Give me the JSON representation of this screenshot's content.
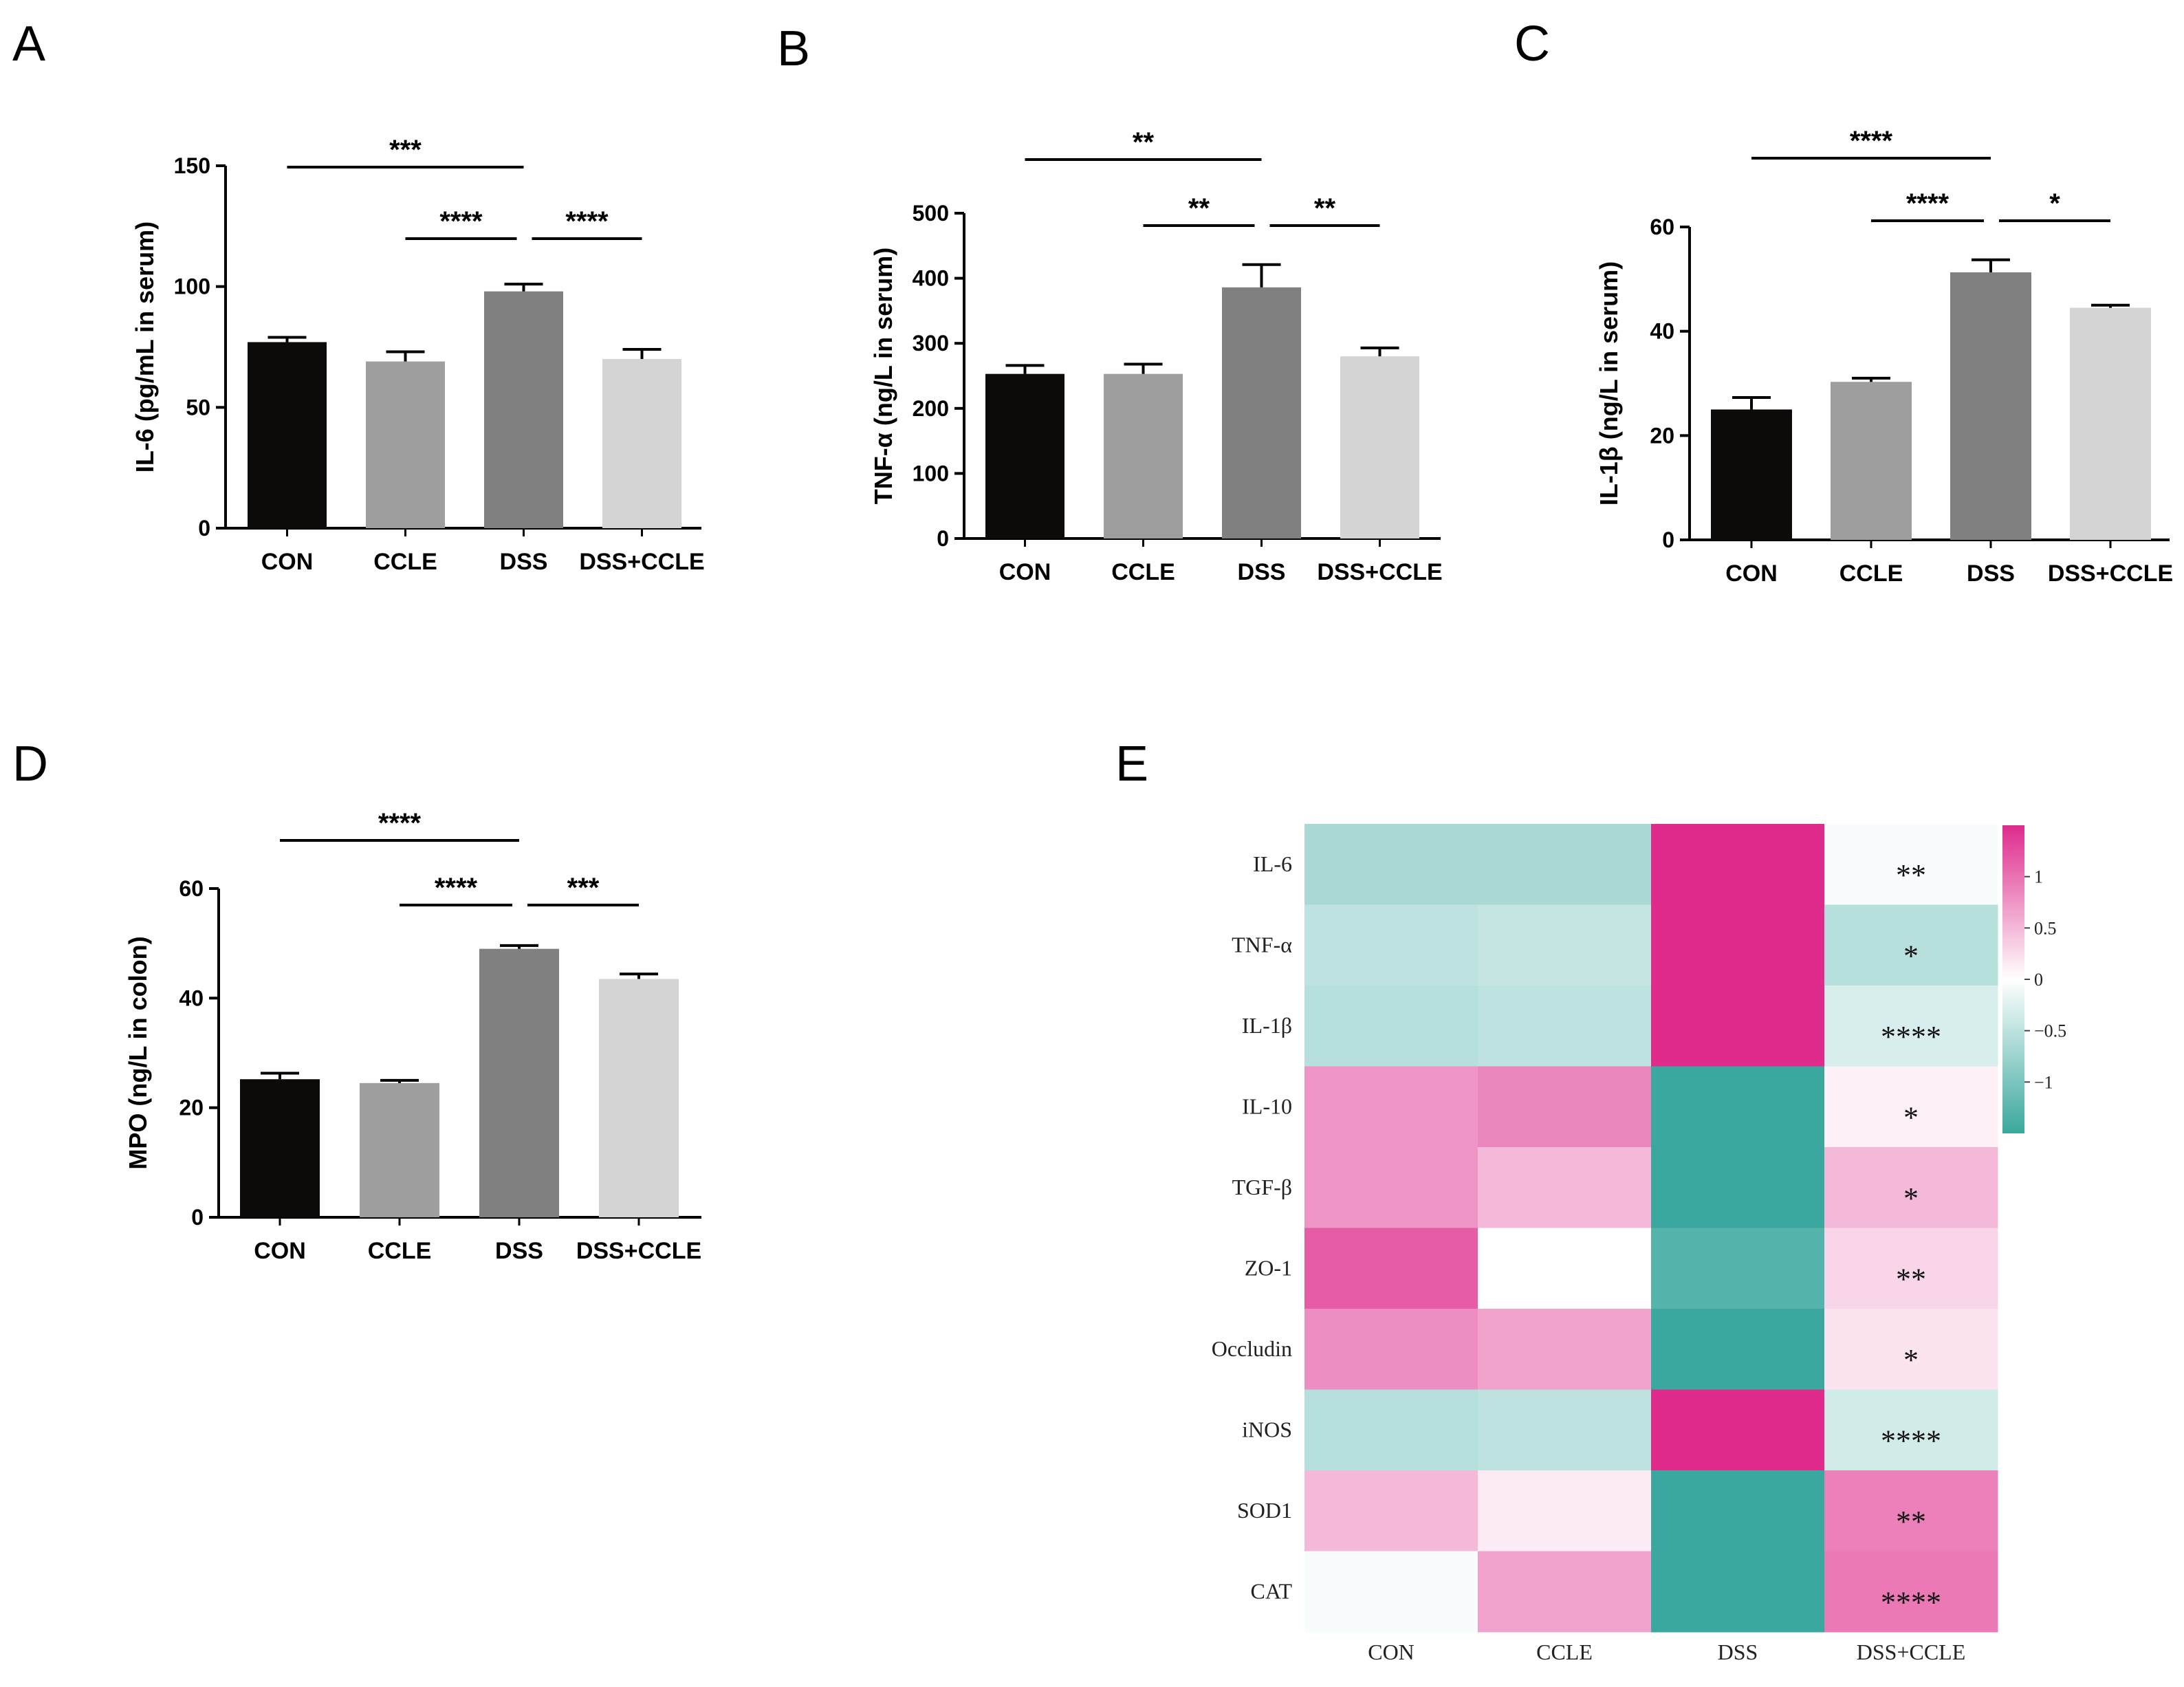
{
  "chart_data": [
    {
      "panel": "A",
      "type": "bar",
      "categories": [
        "CON",
        "CCLE",
        "DSS",
        "DSS+CCLE"
      ],
      "values": [
        77,
        69,
        98,
        70
      ],
      "errors": [
        2,
        4,
        3,
        4
      ],
      "colors": [
        "#0d0a0a",
        "#9e9e9e",
        "#808080",
        "#d4d4d4"
      ],
      "ylabel": "IL-6 (pg/mL in serum)",
      "ylim": [
        0,
        150
      ],
      "yticks": [
        0,
        50,
        100,
        150
      ],
      "significance": [
        {
          "from": 0,
          "to": 2,
          "label": "***",
          "level": 0
        },
        {
          "from": 1,
          "to": 2,
          "label": "****",
          "level": 1
        },
        {
          "from": 2,
          "to": 3,
          "label": "****",
          "level": 1
        }
      ]
    },
    {
      "panel": "B",
      "type": "bar",
      "categories": [
        "CON",
        "CCLE",
        "DSS",
        "DSS+CCLE"
      ],
      "values": [
        253,
        253,
        386,
        280
      ],
      "errors": [
        13,
        15,
        35,
        13
      ],
      "colors": [
        "#0d0a0a",
        "#9e9e9e",
        "#808080",
        "#d4d4d4"
      ],
      "ylabel": "TNF-α (ng/L in serum)",
      "ylim": [
        0,
        500
      ],
      "yticks": [
        0,
        100,
        200,
        300,
        400,
        500
      ],
      "significance": [
        {
          "from": 0,
          "to": 2,
          "label": "**",
          "level": 0
        },
        {
          "from": 1,
          "to": 2,
          "label": "**",
          "level": 1
        },
        {
          "from": 2,
          "to": 3,
          "label": "**",
          "level": 1
        }
      ]
    },
    {
      "panel": "C",
      "type": "bar",
      "categories": [
        "CON",
        "CCLE",
        "DSS",
        "DSS+CCLE"
      ],
      "values": [
        25,
        30.3,
        51.3,
        44.5
      ],
      "errors": [
        2.3,
        0.7,
        2.4,
        0.5
      ],
      "colors": [
        "#0d0a0a",
        "#9e9e9e",
        "#808080",
        "#d4d4d4"
      ],
      "ylabel": "IL-1β (ng/L in serum)",
      "ylim": [
        0,
        60
      ],
      "yticks": [
        0,
        20,
        40,
        60
      ],
      "significance": [
        {
          "from": 0,
          "to": 2,
          "label": "****",
          "level": 0
        },
        {
          "from": 1,
          "to": 2,
          "label": "****",
          "level": 1
        },
        {
          "from": 2,
          "to": 3,
          "label": "*",
          "level": 1
        }
      ]
    },
    {
      "panel": "D",
      "type": "bar",
      "categories": [
        "CON",
        "CCLE",
        "DSS",
        "DSS+CCLE"
      ],
      "values": [
        25.2,
        24.5,
        49,
        43.5
      ],
      "errors": [
        1.1,
        0.5,
        0.6,
        0.9
      ],
      "colors": [
        "#0d0a0a",
        "#9e9e9e",
        "#808080",
        "#d4d4d4"
      ],
      "ylabel": "MPO (ng/L in colon)",
      "ylim": [
        0,
        60
      ],
      "yticks": [
        0,
        20,
        40,
        60
      ],
      "significance": [
        {
          "from": 0,
          "to": 2,
          "label": "****",
          "level": 0
        },
        {
          "from": 1,
          "to": 2,
          "label": "****",
          "level": 1
        },
        {
          "from": 2,
          "to": 3,
          "label": "***",
          "level": 1
        }
      ]
    },
    {
      "panel": "E",
      "type": "heatmap",
      "rows": [
        "IL-6",
        "TNF-α",
        "IL-1β",
        "IL-10",
        "TGF-β",
        "ZO-1",
        "Occludin",
        "iNOS",
        "SOD1",
        "CAT"
      ],
      "columns": [
        "CON",
        "CCLE",
        "DSS",
        "DSS+CCLE"
      ],
      "values": [
        [
          -0.65,
          -0.65,
          1.5,
          -0.05
        ],
        [
          -0.5,
          -0.45,
          1.5,
          -0.55
        ],
        [
          -0.55,
          -0.5,
          1.5,
          -0.3
        ],
        [
          0.75,
          0.85,
          -1.5,
          0.1
        ],
        [
          0.75,
          0.5,
          -1.5,
          0.5
        ],
        [
          1.15,
          0.0,
          -1.3,
          0.3
        ],
        [
          0.8,
          0.65,
          -1.5,
          0.2
        ],
        [
          -0.55,
          -0.5,
          1.5,
          -0.35
        ],
        [
          0.5,
          0.15,
          -1.5,
          0.9
        ],
        [
          -0.05,
          0.65,
          -1.5,
          0.95
        ]
      ],
      "stars": [
        "**",
        "*",
        "****",
        "*",
        "*",
        "**",
        "*",
        "****",
        "**",
        "****"
      ],
      "legend_ticks": [
        1,
        0.5,
        0,
        -0.5,
        -1
      ],
      "legend_tick_labels": [
        "1",
        "0.5",
        "0",
        "−0.5",
        "−1"
      ],
      "color_low": "#3aa89e",
      "color_mid": "#ffffff",
      "color_high": "#de2b8c",
      "vmin": -1.5,
      "vmax": 1.5
    }
  ]
}
